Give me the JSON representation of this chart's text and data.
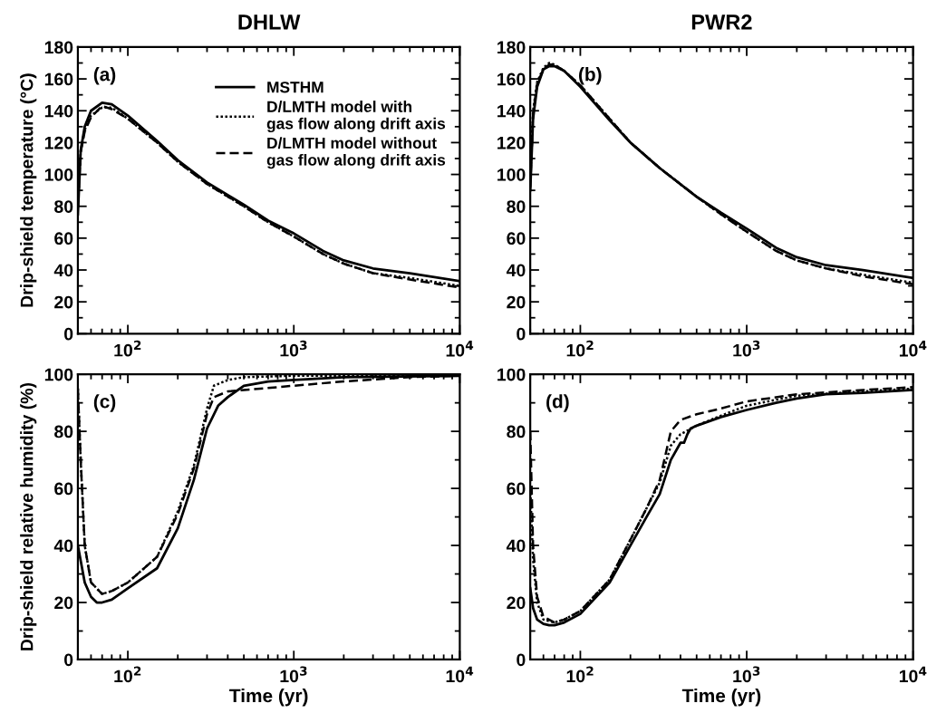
{
  "chart_data": [
    {
      "type": "line",
      "title": "DHLW",
      "ylabel": "Drip-shield temperature (°C)",
      "annotations": [
        "(a)"
      ],
      "legend": "top right",
      "xlim": [
        50,
        10000
      ],
      "ylim": [
        0,
        180
      ],
      "log": "x",
      "xticks": [
        {
          "value": 100,
          "label": "10$^{2}$"
        },
        {
          "value": 1000,
          "label": "10$^{3}$"
        },
        {
          "value": 10000,
          "label": "10$^{4}$"
        }
      ],
      "yticks": [
        0,
        20,
        40,
        60,
        80,
        100,
        120,
        140,
        160,
        180
      ],
      "series": [
        {
          "name": "MSTHM",
          "color": "#000000",
          "line_style": "solid",
          "x": [
            50,
            52,
            55,
            60,
            70,
            80,
            100,
            150,
            200,
            300,
            500,
            700,
            1000,
            1500,
            2000,
            3000,
            5000,
            10000
          ],
          "values": [
            75,
            115,
            130,
            140,
            145,
            144,
            137,
            121,
            109,
            95,
            81,
            71,
            63,
            52,
            46,
            41,
            38,
            33
          ]
        },
        {
          "name": "D/LMTH model with\ngas flow along drift axis",
          "color": "#000000",
          "line_style": "dotted",
          "x": [
            50,
            52,
            55,
            60,
            70,
            80,
            100,
            150,
            200,
            300,
            500,
            700,
            1000,
            1500,
            2000,
            3000,
            5000,
            10000
          ],
          "values": [
            80,
            115,
            128,
            137,
            142,
            142,
            135,
            120,
            108,
            94,
            80,
            70,
            61,
            50,
            44,
            38,
            35,
            30
          ]
        },
        {
          "name": "D/LMTH model without\ngas flow along drift axis",
          "color": "#000000",
          "line_style": "dashed",
          "x": [
            50,
            52,
            55,
            60,
            70,
            80,
            100,
            150,
            200,
            300,
            500,
            700,
            1000,
            1500,
            2000,
            3000,
            5000,
            10000
          ],
          "values": [
            80,
            114,
            127,
            136,
            143,
            141,
            135,
            120,
            108,
            94,
            80,
            70,
            61,
            50,
            44,
            38,
            34,
            29
          ]
        }
      ]
    },
    {
      "type": "line",
      "title": "PWR2",
      "annotations": [
        "(b)"
      ],
      "xlim": [
        50,
        10000
      ],
      "ylim": [
        0,
        180
      ],
      "log": "x",
      "xticks": [
        {
          "value": 100,
          "label": "10$^{2}$"
        },
        {
          "value": 1000,
          "label": "10$^{3}$"
        },
        {
          "value": 10000,
          "label": "10$^{4}$"
        }
      ],
      "yticks": [
        0,
        20,
        40,
        60,
        80,
        100,
        120,
        140,
        160,
        180
      ],
      "series": [
        {
          "color": "#000000",
          "line_style": "solid",
          "x": [
            50,
            52,
            55,
            60,
            65,
            70,
            80,
            100,
            150,
            200,
            300,
            500,
            700,
            1000,
            1500,
            2000,
            3000,
            5000,
            10000
          ],
          "values": [
            90,
            135,
            155,
            166,
            168,
            168,
            165,
            155,
            134,
            120,
            104,
            86,
            76,
            66,
            54,
            48,
            43,
            40,
            35
          ]
        },
        {
          "color": "#000000",
          "line_style": "dotted",
          "x": [
            50,
            52,
            55,
            60,
            65,
            70,
            80,
            100,
            150,
            200,
            300,
            500,
            700,
            1000,
            1500,
            2000,
            3000,
            5000,
            10000
          ],
          "values": [
            95,
            140,
            158,
            167,
            170,
            169,
            165,
            156,
            135,
            120,
            104,
            86,
            75,
            64,
            52,
            46,
            41,
            37,
            32
          ]
        },
        {
          "color": "#000000",
          "line_style": "dashed",
          "x": [
            50,
            52,
            55,
            60,
            65,
            70,
            80,
            100,
            150,
            200,
            300,
            500,
            700,
            1000,
            1500,
            2000,
            3000,
            5000,
            10000
          ],
          "values": [
            92,
            138,
            157,
            166,
            169,
            169,
            165,
            156,
            135,
            120,
            104,
            86,
            75,
            64,
            52,
            46,
            41,
            36,
            31
          ]
        }
      ]
    },
    {
      "type": "line",
      "ylabel": "Drip-shield relative humidity (%)",
      "xlabel": "Time (yr)",
      "annotations": [
        "(c)"
      ],
      "xlim": [
        50,
        10000
      ],
      "ylim": [
        0,
        100
      ],
      "log": "x",
      "xticks": [
        {
          "value": 100,
          "label": "10$^{2}$"
        },
        {
          "value": 1000,
          "label": "10$^{3}$"
        },
        {
          "value": 10000,
          "label": "10$^{4}$"
        }
      ],
      "yticks": [
        0,
        20,
        40,
        60,
        80,
        100
      ],
      "series": [
        {
          "color": "#000000",
          "line_style": "solid",
          "x": [
            50,
            55,
            60,
            65,
            70,
            80,
            100,
            150,
            200,
            250,
            300,
            350,
            400,
            500,
            700,
            1000,
            2000,
            10000
          ],
          "values": [
            40,
            27,
            22,
            20,
            20,
            21,
            25,
            32,
            46,
            63,
            81,
            89,
            92,
            96,
            97.5,
            98,
            99,
            99.5
          ]
        },
        {
          "color": "#000000",
          "line_style": "dotted",
          "x": [
            50,
            52,
            55,
            60,
            70,
            80,
            100,
            150,
            200,
            250,
            300,
            330,
            400,
            500,
            1000,
            10000
          ],
          "values": [
            95,
            70,
            40,
            27,
            23,
            24,
            27,
            36,
            52,
            68,
            88,
            96,
            98,
            99,
            99.5,
            99.5
          ]
        },
        {
          "color": "#000000",
          "line_style": "dashed",
          "x": [
            50,
            52,
            55,
            60,
            70,
            80,
            100,
            150,
            200,
            250,
            300,
            330,
            400,
            500,
            1000,
            2000,
            5000,
            10000
          ],
          "values": [
            95,
            70,
            40,
            27,
            23,
            24,
            27,
            36,
            51,
            67,
            86,
            92,
            94,
            94.5,
            96,
            97.5,
            99,
            99.5
          ]
        }
      ]
    },
    {
      "type": "line",
      "xlabel": "Time (yr)",
      "annotations": [
        "(d)"
      ],
      "xlim": [
        50,
        10000
      ],
      "ylim": [
        0,
        100
      ],
      "log": "x",
      "xticks": [
        {
          "value": 100,
          "label": "10$^{2}$"
        },
        {
          "value": 1000,
          "label": "10$^{3}$"
        },
        {
          "value": 10000,
          "label": "10$^{4}$"
        }
      ],
      "yticks": [
        0,
        20,
        40,
        60,
        80,
        100
      ],
      "series": [
        {
          "color": "#000000",
          "line_style": "solid",
          "x": [
            50,
            52,
            55,
            60,
            65,
            70,
            80,
            100,
            150,
            200,
            250,
            300,
            350,
            400,
            420,
            440,
            460,
            500,
            700,
            1000,
            1500,
            2000,
            3000,
            5000,
            10000
          ],
          "values": [
            25,
            18,
            14,
            12.5,
            12,
            12,
            13,
            16,
            27,
            40,
            50,
            58,
            70,
            76,
            76,
            79,
            81,
            82,
            85,
            87.5,
            90,
            91.5,
            93,
            93.5,
            94.5
          ]
        },
        {
          "color": "#000000",
          "line_style": "dotted",
          "x": [
            50,
            52,
            55,
            60,
            70,
            80,
            100,
            150,
            200,
            250,
            300,
            350,
            400,
            500,
            700,
            1000,
            2000,
            5000,
            10000
          ],
          "values": [
            60,
            35,
            20,
            14,
            13,
            14,
            17,
            28,
            42,
            53,
            62,
            75,
            79,
            82,
            85.5,
            89,
            92.5,
            94,
            95
          ]
        },
        {
          "color": "#000000",
          "line_style": "dashed",
          "x": [
            50,
            52,
            55,
            60,
            70,
            80,
            100,
            150,
            200,
            250,
            300,
            350,
            400,
            500,
            700,
            1000,
            2000,
            5000,
            10000
          ],
          "values": [
            80,
            40,
            22,
            15,
            13,
            14,
            17,
            28,
            42,
            53,
            63,
            80,
            84,
            86,
            88,
            90.5,
            93,
            94.5,
            95.5
          ]
        }
      ]
    }
  ]
}
